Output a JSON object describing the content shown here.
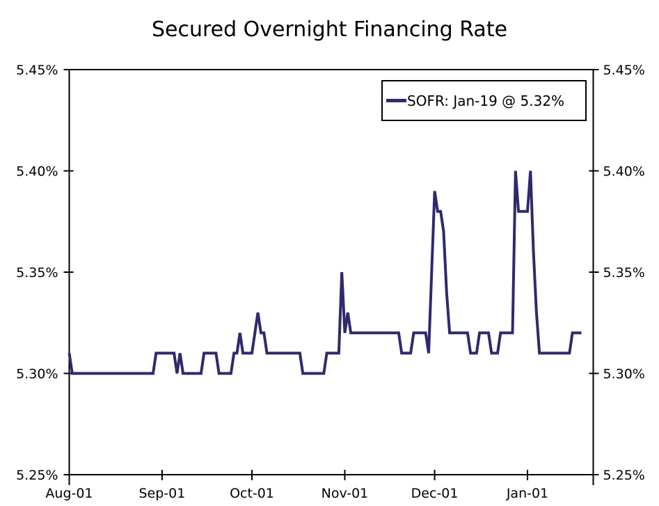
{
  "title": "Secured Overnight Financing Rate",
  "legend": {
    "label": "SOFR: Jan-19 @ 5.32%"
  },
  "colors": {
    "line": "#2E2A6D",
    "axis": "#000000",
    "text": "#000000",
    "background": "#FFFFFF"
  },
  "chart_data": {
    "type": "line",
    "series_name": "SOFR",
    "unit": "percent",
    "frequency": "daily",
    "start_date": "2023-08-01",
    "end_date": "2024-01-19",
    "last_point": {
      "label": "Jan-19",
      "value": 5.32
    },
    "ylim": [
      5.25,
      5.45
    ],
    "grid": false,
    "legend_position": "top-right",
    "y_ticks": [
      {
        "label": "5.45%",
        "value": 5.45
      },
      {
        "label": "5.40%",
        "value": 5.4
      },
      {
        "label": "5.35%",
        "value": 5.35
      },
      {
        "label": "5.30%",
        "value": 5.3
      },
      {
        "label": "5.25%",
        "value": 5.25
      }
    ],
    "x_ticks": [
      {
        "label": "Aug-01",
        "date": "2023-08-01"
      },
      {
        "label": "Sep-01",
        "date": "2023-09-01"
      },
      {
        "label": "Oct-01",
        "date": "2023-10-01"
      },
      {
        "label": "Nov-01",
        "date": "2023-11-01"
      },
      {
        "label": "Dec-01",
        "date": "2023-12-01"
      },
      {
        "label": "Jan-01",
        "date": "2024-01-01"
      }
    ],
    "values": [
      5.31,
      5.3,
      5.3,
      5.3,
      5.3,
      5.3,
      5.3,
      5.3,
      5.3,
      5.3,
      5.3,
      5.3,
      5.3,
      5.3,
      5.3,
      5.3,
      5.3,
      5.3,
      5.3,
      5.3,
      5.3,
      5.3,
      5.3,
      5.3,
      5.3,
      5.3,
      5.3,
      5.3,
      5.3,
      5.31,
      5.31,
      5.31,
      5.31,
      5.31,
      5.31,
      5.31,
      5.3,
      5.31,
      5.3,
      5.3,
      5.3,
      5.3,
      5.3,
      5.3,
      5.3,
      5.31,
      5.31,
      5.31,
      5.31,
      5.31,
      5.3,
      5.3,
      5.3,
      5.3,
      5.3,
      5.31,
      5.31,
      5.32,
      5.31,
      5.31,
      5.31,
      5.31,
      5.32,
      5.33,
      5.32,
      5.32,
      5.31,
      5.31,
      5.31,
      5.31,
      5.31,
      5.31,
      5.31,
      5.31,
      5.31,
      5.31,
      5.31,
      5.31,
      5.3,
      5.3,
      5.3,
      5.3,
      5.3,
      5.3,
      5.3,
      5.3,
      5.31,
      5.31,
      5.31,
      5.31,
      5.31,
      5.35,
      5.32,
      5.33,
      5.32,
      5.32,
      5.32,
      5.32,
      5.32,
      5.32,
      5.32,
      5.32,
      5.32,
      5.32,
      5.32,
      5.32,
      5.32,
      5.32,
      5.32,
      5.32,
      5.32,
      5.31,
      5.31,
      5.31,
      5.31,
      5.32,
      5.32,
      5.32,
      5.32,
      5.32,
      5.31,
      5.35,
      5.39,
      5.38,
      5.38,
      5.37,
      5.34,
      5.32,
      5.32,
      5.32,
      5.32,
      5.32,
      5.32,
      5.32,
      5.31,
      5.31,
      5.31,
      5.32,
      5.32,
      5.32,
      5.32,
      5.31,
      5.31,
      5.31,
      5.32,
      5.32,
      5.32,
      5.32,
      5.32,
      5.4,
      5.38,
      5.38,
      5.38,
      5.38,
      5.4,
      5.36,
      5.33,
      5.31,
      5.31,
      5.31,
      5.31,
      5.31,
      5.31,
      5.31,
      5.31,
      5.31,
      5.31,
      5.31,
      5.32,
      5.32,
      5.32,
      5.32
    ]
  }
}
